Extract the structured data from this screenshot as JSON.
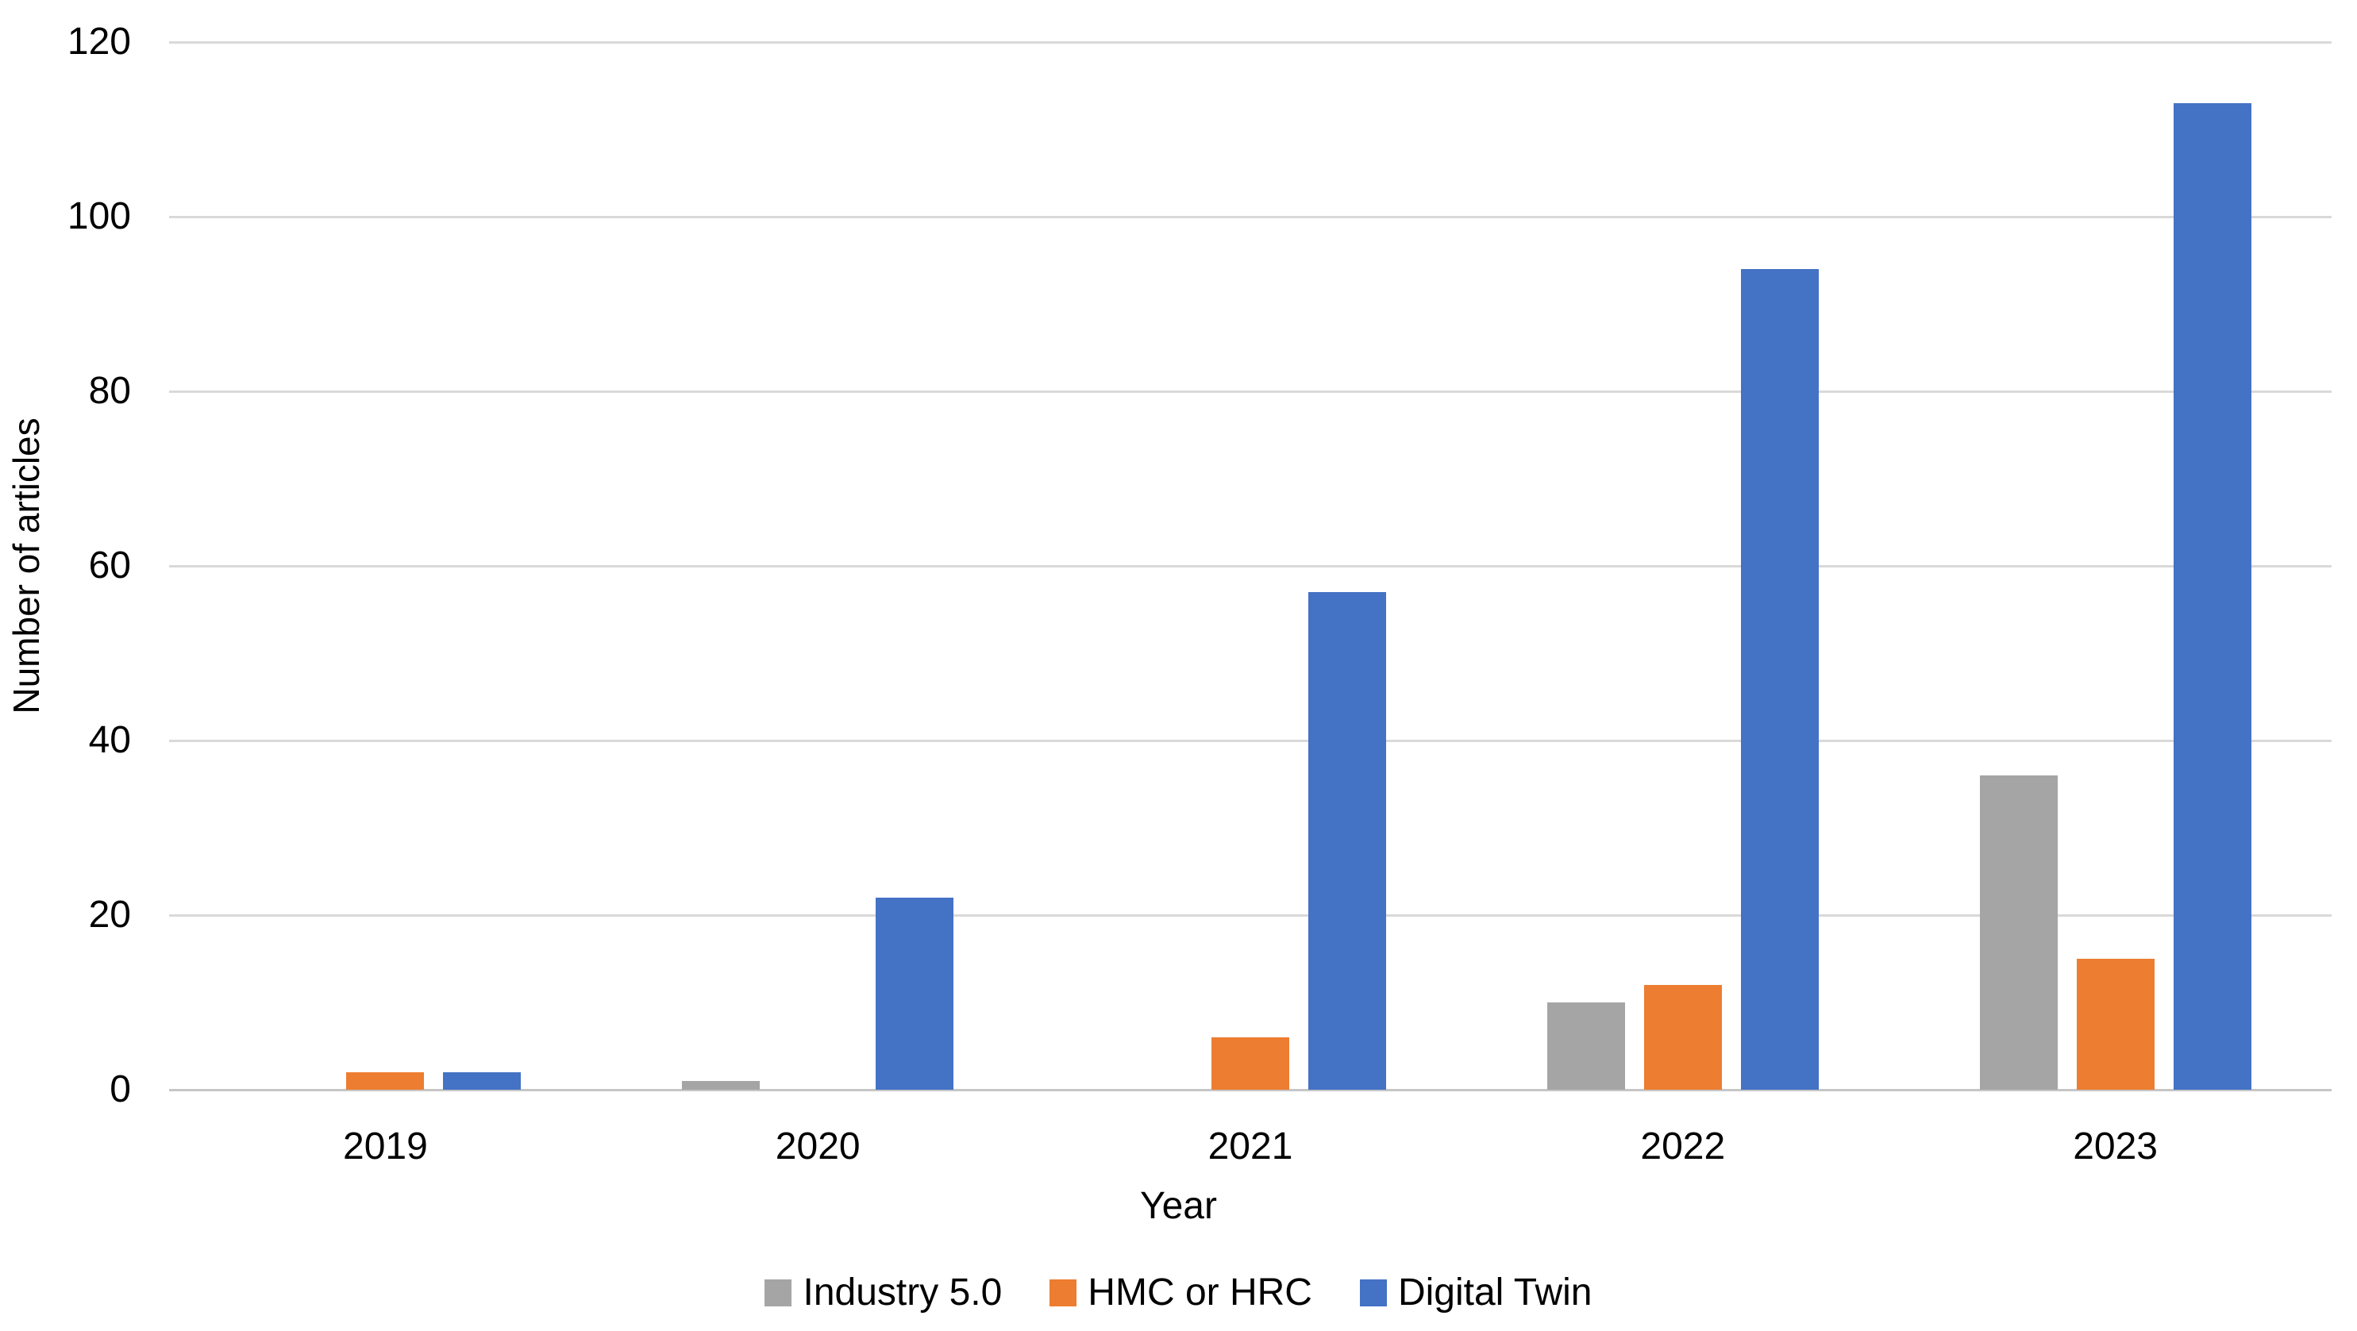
{
  "chart_data": {
    "type": "bar",
    "title": "",
    "xlabel": "Year",
    "ylabel": "Number of articles",
    "categories": [
      "2019",
      "2020",
      "2021",
      "2022",
      "2023"
    ],
    "series": [
      {
        "name": "Industry 5.0",
        "color": "#A5A5A5",
        "values": [
          0,
          1,
          0,
          10,
          36
        ]
      },
      {
        "name": "HMC or HRC",
        "color": "#ED7D31",
        "values": [
          2,
          0,
          6,
          12,
          15
        ]
      },
      {
        "name": "Digital Twin",
        "color": "#4472C4",
        "values": [
          2,
          22,
          57,
          94,
          113
        ]
      }
    ],
    "ylim": [
      0,
      120
    ],
    "y_ticks": [
      0,
      20,
      40,
      60,
      80,
      100,
      120
    ],
    "grid": true,
    "legend_position": "bottom",
    "colors": {
      "gridline": "#D9D9D9",
      "axis_line": "#C6C6C6",
      "text": "#000000",
      "background": "#FFFFFF"
    }
  }
}
